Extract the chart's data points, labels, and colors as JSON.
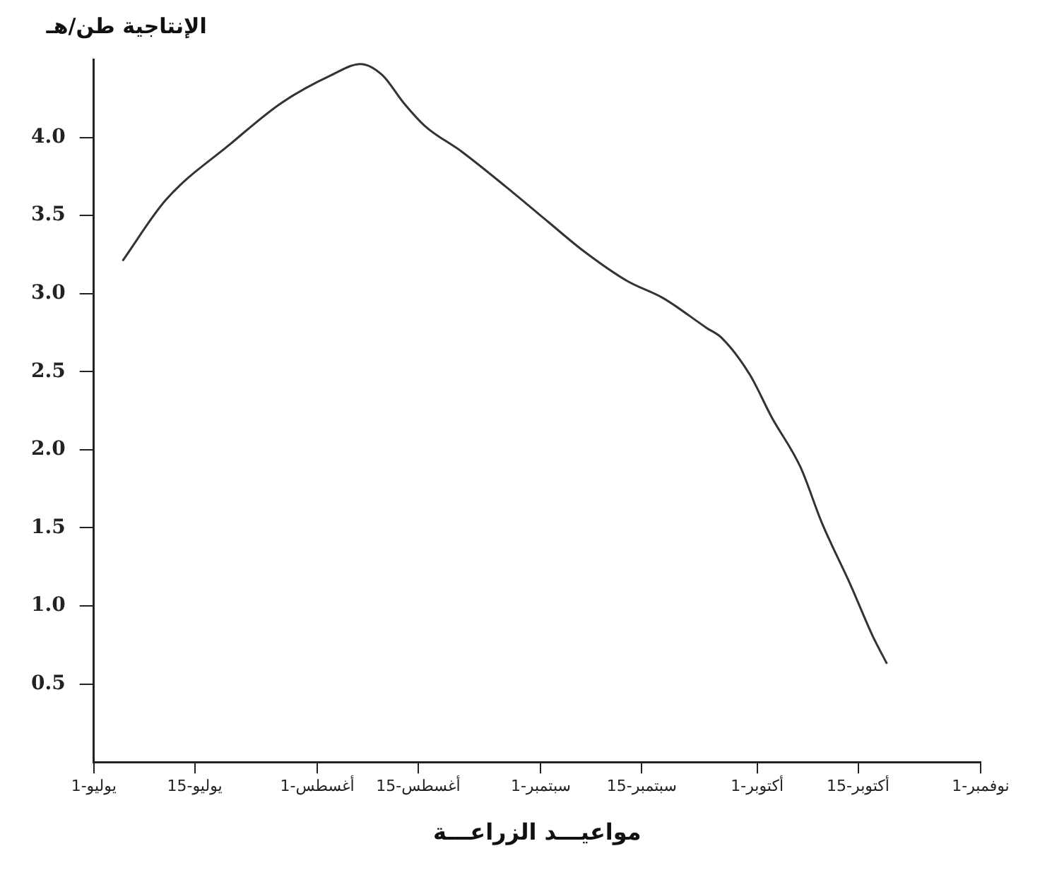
{
  "chart_data": {
    "type": "line",
    "ylabel": "الإنتاجية طن/هـ",
    "xlabel": "مواعيـــد الزراعـــة",
    "x": [
      "--07-05",
      "--07-11",
      "--07-20",
      "--07-27",
      "--08-03",
      "--08-07",
      "--08-10",
      "--08-13",
      "--08-16",
      "--08-21",
      "--08-27",
      "--09-02",
      "--09-07",
      "--09-13",
      "--09-18",
      "--09-24",
      "--09-26",
      "--09-30",
      "--10-03",
      "--10-07",
      "--10-10",
      "--10-14",
      "--10-17",
      "--10-19"
    ],
    "series": [
      {
        "color": "#333333",
        "values": [
          3.21,
          3.6,
          3.96,
          4.22,
          4.4,
          4.47,
          4.4,
          4.22,
          4.07,
          3.91,
          3.69,
          3.46,
          3.27,
          3.08,
          2.97,
          2.78,
          2.72,
          2.48,
          2.21,
          1.89,
          1.53,
          1.13,
          0.81,
          0.63
        ]
      }
    ],
    "xlim": [
      "--07-01",
      "--11-01"
    ],
    "xticks": [
      {
        "value": "--07-01",
        "label": "1-يوليو"
      },
      {
        "value": "--07-15",
        "label": "15-يوليو"
      },
      {
        "value": "--08-01",
        "label": "1-أغسطس"
      },
      {
        "value": "--08-15",
        "label": "15-أغسطس"
      },
      {
        "value": "--09-01",
        "label": "1-سبتمبر"
      },
      {
        "value": "--09-15",
        "label": "15-سبتمبر"
      },
      {
        "value": "--10-01",
        "label": "1-أكتوبر"
      },
      {
        "value": "--10-15",
        "label": "15-أكتوبر"
      },
      {
        "value": "--11-01",
        "label": "1-نوفمبر"
      }
    ],
    "ylim": [
      0,
      4.5
    ],
    "yticks": [
      0.5,
      {
        "value": 1,
        "label": "1.0"
      },
      1.5,
      {
        "value": 2,
        "label": "2.0"
      },
      2.5,
      {
        "value": 3,
        "label": "3.0"
      },
      3.5,
      {
        "value": 4,
        "label": "4.0"
      }
    ],
    "grid": false,
    "legend": false,
    "marker": "none",
    "line_style": "solid"
  }
}
